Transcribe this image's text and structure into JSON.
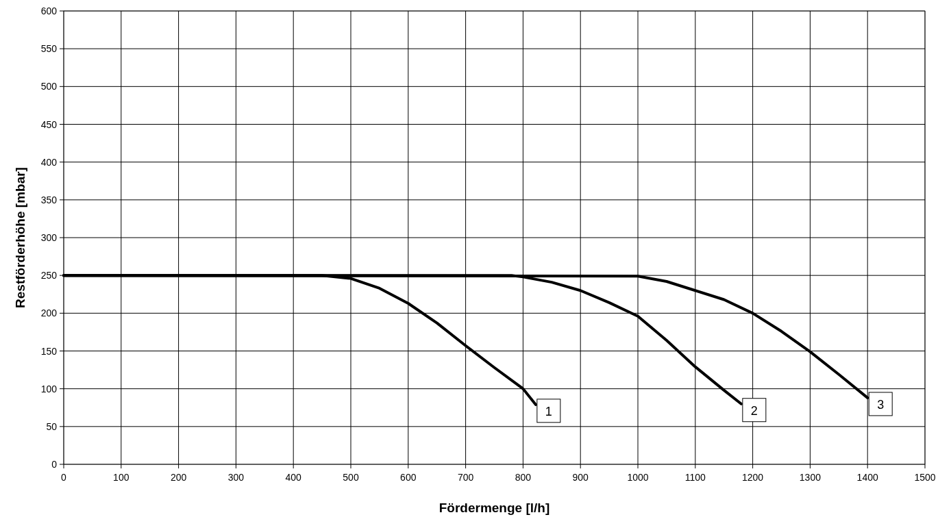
{
  "chart_data": {
    "type": "line",
    "xlabel": "Fördermenge [l/h]",
    "ylabel": "Restförderhöhe [mbar]",
    "xlim": [
      0,
      1500
    ],
    "xticks": [
      0,
      100,
      200,
      300,
      400,
      500,
      600,
      700,
      800,
      900,
      1000,
      1100,
      1200,
      1300,
      1400,
      1500
    ],
    "ylim": [
      0,
      600
    ],
    "yticks": [
      0,
      50,
      100,
      150,
      200,
      250,
      300,
      350,
      400,
      450,
      500,
      550,
      600
    ],
    "grid": true,
    "marker": "none",
    "line_style": "solid",
    "series": [
      {
        "name": "1",
        "color": "#000000",
        "x": [
          0,
          450,
          500,
          550,
          600,
          650,
          700,
          750,
          800,
          822
        ],
        "values": [
          250,
          250,
          246,
          233,
          213,
          187,
          157,
          128,
          100,
          79
        ]
      },
      {
        "name": "2",
        "color": "#000000",
        "x": [
          0,
          780,
          800,
          850,
          900,
          950,
          1000,
          1050,
          1100,
          1150,
          1180
        ],
        "values": [
          250,
          250,
          248,
          241,
          230,
          214,
          196,
          164,
          129,
          98,
          80
        ]
      },
      {
        "name": "3",
        "color": "#000000",
        "x": [
          0,
          1000,
          1050,
          1100,
          1150,
          1200,
          1250,
          1300,
          1350,
          1400
        ],
        "values": [
          250,
          249,
          242,
          230,
          218,
          200,
          176,
          149,
          119,
          88
        ]
      }
    ]
  }
}
